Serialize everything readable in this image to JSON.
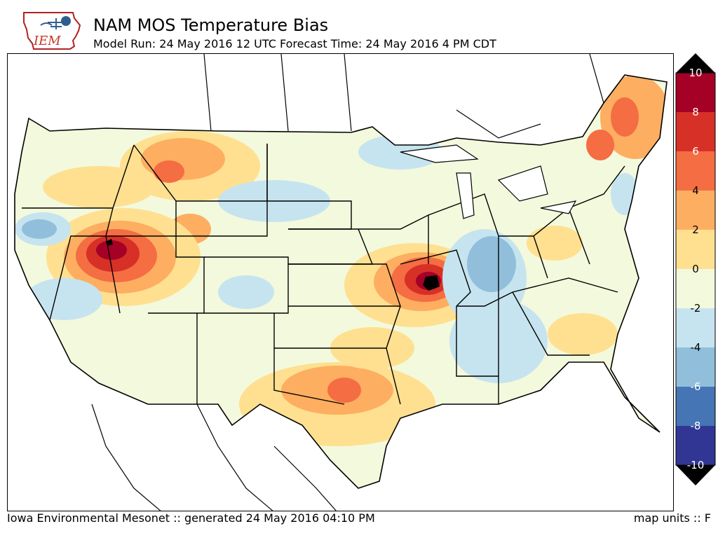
{
  "logo": {
    "text": "IEM",
    "icon": "iowa-state-outline-with-weather-icons"
  },
  "header": {
    "title": "NAM MOS Temperature Bias",
    "subtitle": "Model Run: 24 May 2016 12 UTC Forecast Time: 24 May 2016 4 PM CDT"
  },
  "colorbar": {
    "ticks": [
      "10",
      "8",
      "6",
      "4",
      "2",
      "0",
      "-2",
      "-4",
      "-6",
      "-8",
      "-10"
    ],
    "range": [
      -10,
      10
    ],
    "colors": [
      "#a50026",
      "#d73027",
      "#f46d43",
      "#fdae61",
      "#fee090",
      "#f3f9dc",
      "#c6e4ef",
      "#91bfdb",
      "#4575b4",
      "#313695"
    ],
    "over_color": "#000000",
    "under_color": "#000000"
  },
  "footer": {
    "left": "Iowa Environmental Mesonet :: generated 24 May 2016 04:10 PM",
    "right": "map units :: F"
  }
}
